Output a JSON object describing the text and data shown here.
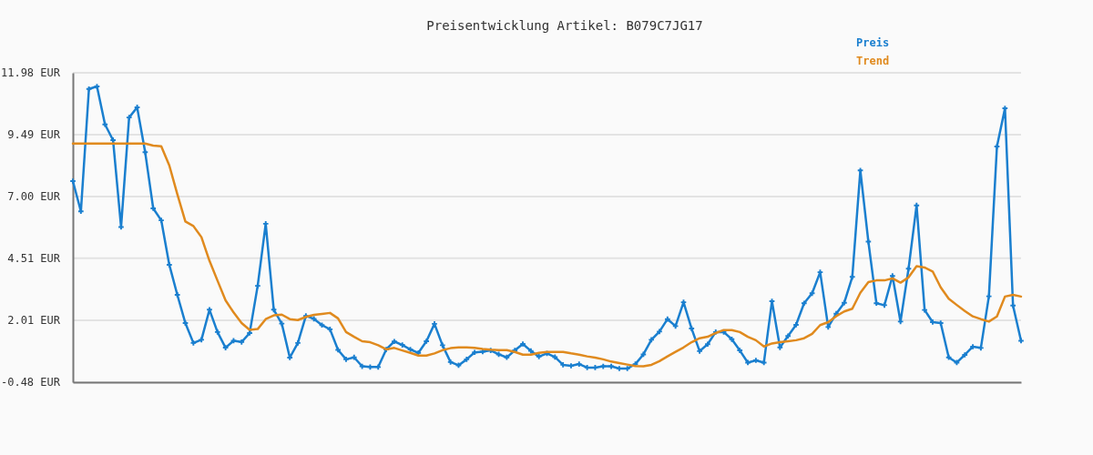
{
  "chart_data": {
    "type": "line",
    "title": "Preisentwicklung Artikel: B079C7JG17",
    "categories": [
      null,
      null,
      null,
      null,
      null,
      null,
      null,
      null,
      null,
      null,
      null,
      null,
      null,
      null,
      null,
      null,
      null,
      null,
      null,
      null,
      null,
      null,
      null,
      null,
      null,
      null,
      null,
      null,
      null,
      null,
      null,
      null,
      null,
      null,
      null,
      null,
      null,
      null,
      null,
      null,
      null,
      null,
      null,
      null,
      null,
      null,
      null,
      null,
      null,
      null,
      null,
      null,
      null,
      null,
      null,
      null,
      null,
      null,
      null,
      null,
      null,
      null,
      null,
      null,
      null,
      null,
      null,
      null,
      null,
      null,
      null,
      null,
      null,
      null,
      null,
      null,
      null,
      null,
      null,
      null,
      null,
      null,
      null,
      null,
      null,
      null,
      null,
      null,
      null,
      null,
      null,
      null,
      null,
      null,
      null,
      null,
      null,
      null,
      null,
      null,
      null,
      null,
      null,
      null,
      null,
      null,
      null,
      null,
      null,
      null,
      null,
      null,
      null,
      null,
      null,
      null,
      null,
      null,
      null
    ],
    "series": [
      {
        "name": "Preis",
        "color": "#1a7fcf",
        "marker": "cross",
        "values": [
          7.62,
          6.4,
          11.33,
          11.43,
          9.9,
          9.27,
          5.77,
          10.18,
          10.59,
          8.78,
          6.52,
          6.04,
          4.25,
          3.04,
          1.9,
          1.1,
          1.23,
          2.44,
          1.54,
          0.91,
          1.19,
          1.14,
          1.5,
          3.4,
          5.9,
          2.44,
          1.88,
          0.51,
          1.1,
          2.19,
          2.07,
          1.82,
          1.65,
          0.82,
          0.44,
          0.52,
          0.16,
          0.13,
          0.13,
          0.84,
          1.16,
          1.02,
          0.84,
          0.7,
          1.17,
          1.87,
          1.01,
          0.33,
          0.2,
          0.44,
          0.72,
          0.75,
          0.8,
          0.64,
          0.52,
          0.8,
          1.06,
          0.78,
          0.55,
          0.68,
          0.53,
          0.22,
          0.18,
          0.25,
          0.11,
          0.11,
          0.16,
          0.16,
          0.07,
          0.07,
          0.25,
          0.64,
          1.23,
          1.56,
          2.06,
          1.78,
          2.74,
          1.68,
          0.77,
          1.05,
          1.54,
          1.54,
          1.25,
          0.8,
          0.31,
          0.4,
          0.31,
          2.78,
          0.92,
          1.38,
          1.83,
          2.7,
          3.1,
          3.95,
          1.74,
          2.28,
          2.72,
          3.76,
          8.05,
          5.18,
          2.7,
          2.62,
          3.8,
          1.96,
          4.09,
          6.64,
          2.43,
          1.94,
          1.9,
          0.52,
          0.31,
          0.62,
          0.95,
          0.9,
          2.98,
          9.01,
          10.55,
          2.61,
          1.19
        ]
      },
      {
        "name": "Trend",
        "color": "#e08a1e",
        "marker": "none",
        "values": [
          9.13,
          9.13,
          9.13,
          9.13,
          9.13,
          9.13,
          9.13,
          9.13,
          9.13,
          9.13,
          9.05,
          9.02,
          8.25,
          7.09,
          5.99,
          5.81,
          5.36,
          4.41,
          3.61,
          2.82,
          2.33,
          1.9,
          1.63,
          1.66,
          2.06,
          2.21,
          2.24,
          2.06,
          2.02,
          2.15,
          2.23,
          2.27,
          2.31,
          2.09,
          1.54,
          1.35,
          1.17,
          1.13,
          1.01,
          0.84,
          0.9,
          0.8,
          0.7,
          0.59,
          0.59,
          0.68,
          0.81,
          0.89,
          0.92,
          0.92,
          0.9,
          0.86,
          0.83,
          0.81,
          0.81,
          0.74,
          0.63,
          0.63,
          0.7,
          0.74,
          0.74,
          0.74,
          0.68,
          0.63,
          0.56,
          0.51,
          0.44,
          0.35,
          0.29,
          0.23,
          0.17,
          0.16,
          0.22,
          0.37,
          0.56,
          0.74,
          0.92,
          1.13,
          1.29,
          1.35,
          1.5,
          1.62,
          1.62,
          1.54,
          1.35,
          1.21,
          0.96,
          1.08,
          1.13,
          1.17,
          1.21,
          1.29,
          1.47,
          1.82,
          1.94,
          2.18,
          2.37,
          2.48,
          3.12,
          3.55,
          3.62,
          3.62,
          3.7,
          3.53,
          3.74,
          4.19,
          4.14,
          3.98,
          3.34,
          2.88,
          2.63,
          2.39,
          2.17,
          2.06,
          1.96,
          2.17,
          2.97,
          3.04,
          2.97
        ]
      }
    ],
    "ylim": [
      -0.48,
      11.98
    ],
    "yticks": [
      {
        "value": -0.48,
        "label": "-0.48 EUR"
      },
      {
        "value": 2.01,
        "label": "2.01 EUR"
      },
      {
        "value": 4.51,
        "label": "4.51 EUR"
      },
      {
        "value": 7.0,
        "label": "7.00 EUR"
      },
      {
        "value": 9.49,
        "label": "9.49 EUR"
      },
      {
        "value": 11.98,
        "label": "11.98 EUR"
      }
    ],
    "grid": "y",
    "legend": "top right",
    "tick_labels": "y"
  }
}
